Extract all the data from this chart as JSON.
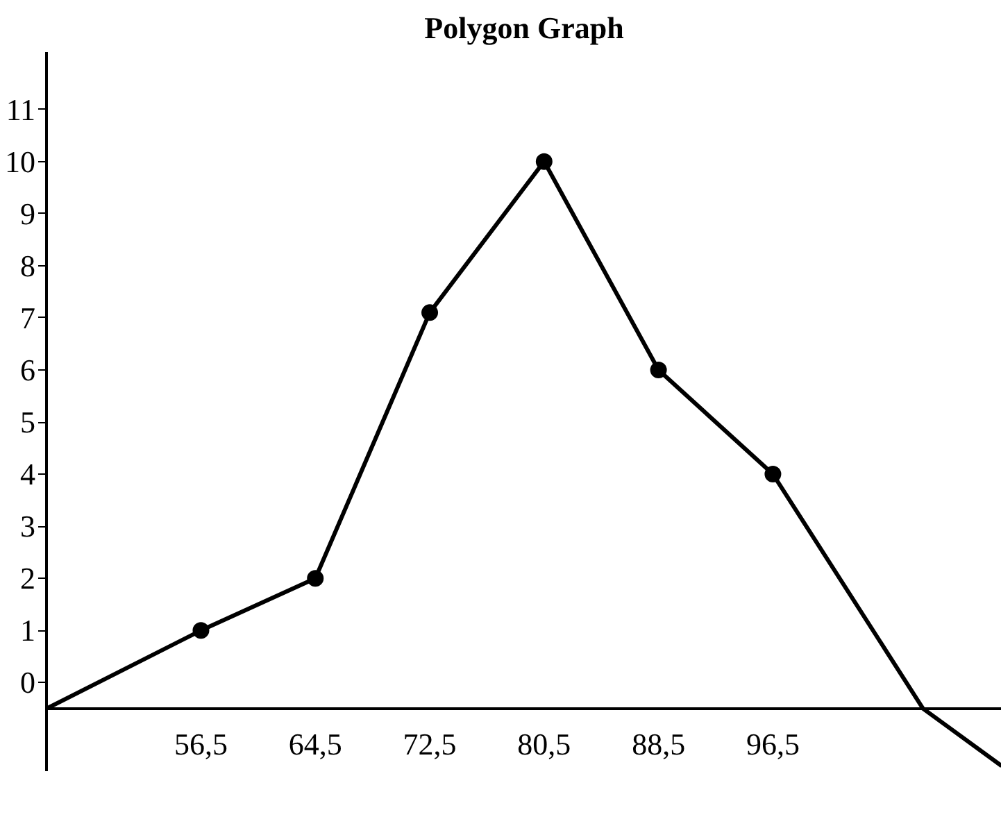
{
  "chart_data": {
    "type": "line",
    "title": "Polygon Graph",
    "x": [
      45.7,
      56.5,
      64.5,
      72.5,
      80.5,
      88.5,
      96.5,
      107,
      112.5
    ],
    "values": [
      -0.5,
      1,
      2,
      7.1,
      10,
      6,
      4,
      -0.5,
      -1.6
    ],
    "color": "#000000",
    "marker": "circle",
    "line_style": "solid",
    "grid": false,
    "xlim": [
      45.7,
      112.5
    ],
    "ylim": [
      -1.7,
      12.1
    ],
    "xticks": [
      {
        "value": 56.5,
        "label": "56,5"
      },
      {
        "value": 64.5,
        "label": "64,5"
      },
      {
        "value": 72.5,
        "label": "72,5"
      },
      {
        "value": 80.5,
        "label": "80,5"
      },
      {
        "value": 88.5,
        "label": "88,5"
      },
      {
        "value": 96.5,
        "label": "96,5"
      }
    ],
    "yticks": [
      0,
      1,
      2,
      3,
      4,
      5,
      6,
      7,
      8,
      9,
      10,
      11
    ]
  }
}
